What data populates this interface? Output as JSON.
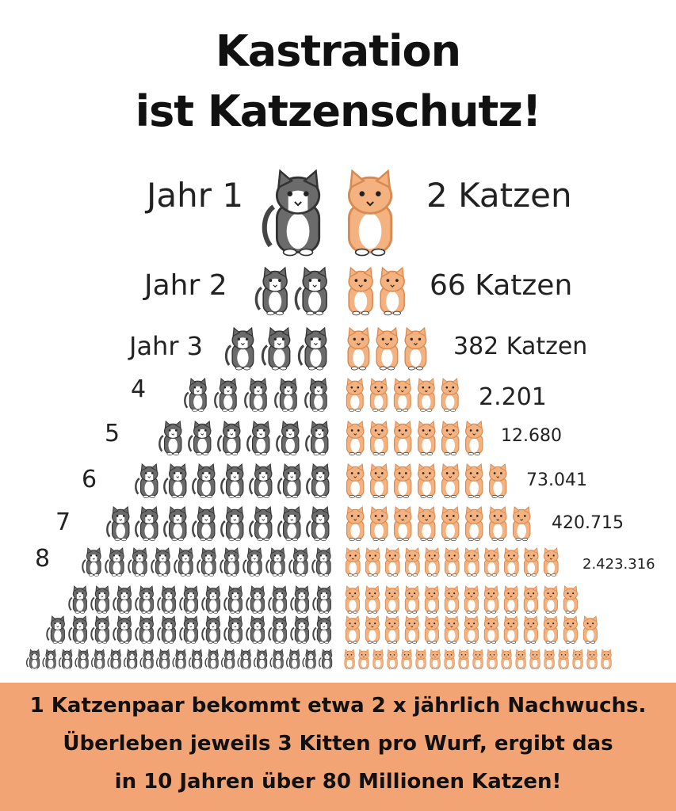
{
  "title": {
    "line1": "Kastration",
    "line2": "ist Katzenschutz!"
  },
  "rows": [
    {
      "year_label": "Jahr 1",
      "count_label": "2 Katzen"
    },
    {
      "year_label": "Jahr 2",
      "count_label": "66 Katzen"
    },
    {
      "year_label": "Jahr 3",
      "count_label": "382 Katzen"
    },
    {
      "year_label": "4",
      "count_label": "2.201"
    },
    {
      "year_label": "5",
      "count_label": "12.680"
    },
    {
      "year_label": "6",
      "count_label": "73.041"
    },
    {
      "year_label": "7",
      "count_label": "420.715"
    },
    {
      "year_label": "8",
      "count_label": "2.423.316"
    }
  ],
  "footer": {
    "line1": "1 Katzenpaar bekommt etwa 2 x jährlich Nachwuchs.",
    "line2": "Überleben jeweils 3 Kitten pro Wurf, ergibt das",
    "line3": "in 10 Jahren über 80 Millionen Katzen!"
  },
  "colors": {
    "grey_cat": "#6b6b6b",
    "orange_cat": "#f3b27f",
    "footer_bg": "#f2a474"
  }
}
